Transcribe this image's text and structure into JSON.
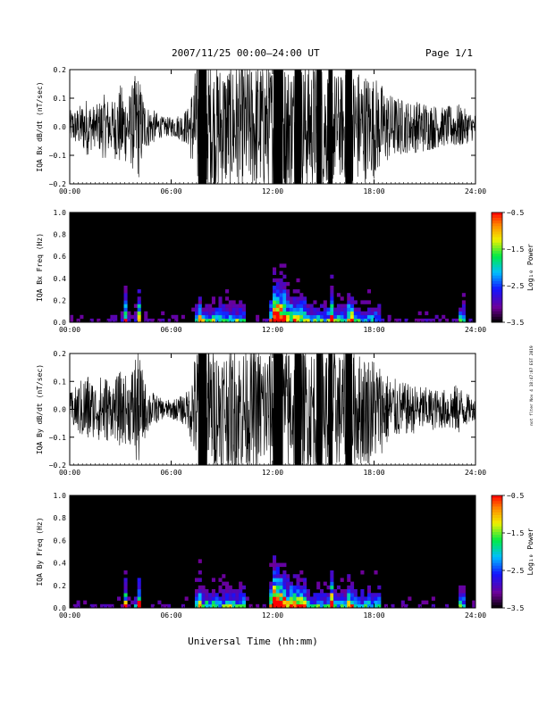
{
  "header": {
    "title": "2007/11/25  00:00–24:00 UT",
    "page": "Page 1/1"
  },
  "side_note": "not flter Nov 4 18:47:07 EST 2019",
  "xlabel": "Universal Time (hh:mm)",
  "x_ticks": [
    "00:00",
    "06:00",
    "12:00",
    "18:00",
    "24:00"
  ],
  "chart_data": [
    {
      "type": "line",
      "ylabel": "IQA Bx dB/dt (nT/sec)",
      "xlim": [
        0,
        24
      ],
      "ylim": [
        -0.2,
        0.2
      ],
      "y_ticks": [
        "0.2",
        "0.1",
        "0.0",
        "−0.1",
        "−0.2"
      ],
      "amplitude_envelope": {
        "hours": [
          0,
          0.5,
          1,
          1.5,
          2,
          2.5,
          3,
          3.5,
          4,
          4.5,
          5,
          5.5,
          6,
          6.5,
          7,
          7.5,
          8,
          9,
          10,
          11,
          12,
          12.5,
          13,
          14,
          15,
          16,
          17,
          18,
          19,
          20,
          21,
          22,
          23,
          23.5,
          24
        ],
        "values": [
          0.05,
          0.06,
          0.09,
          0.06,
          0.1,
          0.08,
          0.13,
          0.1,
          0.18,
          0.07,
          0.05,
          0.03,
          0.03,
          0.04,
          0.06,
          0.2,
          0.2,
          0.2,
          0.2,
          0.2,
          0.2,
          0.2,
          0.2,
          0.2,
          0.2,
          0.16,
          0.18,
          0.16,
          0.1,
          0.08,
          0.08,
          0.06,
          0.07,
          0.05,
          0.04
        ]
      }
    },
    {
      "type": "heatmap",
      "ylabel": "IQA Bx Freq (Hz)",
      "xlim": [
        0,
        24
      ],
      "ylim": [
        0,
        1.0
      ],
      "y_ticks": [
        "1.0",
        "0.8",
        "0.6",
        "0.4",
        "0.2",
        "0.0"
      ],
      "colorbar": {
        "label": "Log₁₀ Power",
        "range": [
          -3.5,
          -0.5
        ],
        "ticks": [
          "−0.5",
          "−1.5",
          "−2.5",
          "−3.5"
        ]
      }
    },
    {
      "type": "line",
      "ylabel": "IQA By dB/dt (nT/sec)",
      "xlim": [
        0,
        24
      ],
      "ylim": [
        -0.2,
        0.2
      ],
      "y_ticks": [
        "0.2",
        "0.1",
        "0.0",
        "−0.1",
        "−0.2"
      ],
      "amplitude_envelope": {
        "hours": [
          0,
          0.5,
          1,
          1.5,
          2,
          2.5,
          3,
          3.5,
          4,
          4.5,
          5,
          5.5,
          6,
          6.5,
          7,
          7.5,
          8,
          9,
          10,
          11,
          12,
          12.5,
          13,
          14,
          15,
          16,
          17,
          18,
          19,
          20,
          21,
          22,
          23,
          23.5,
          24
        ],
        "values": [
          0.05,
          0.08,
          0.12,
          0.08,
          0.12,
          0.08,
          0.12,
          0.1,
          0.2,
          0.08,
          0.05,
          0.03,
          0.03,
          0.04,
          0.06,
          0.2,
          0.2,
          0.2,
          0.2,
          0.2,
          0.2,
          0.2,
          0.2,
          0.2,
          0.2,
          0.18,
          0.18,
          0.17,
          0.1,
          0.08,
          0.07,
          0.06,
          0.08,
          0.05,
          0.03
        ]
      }
    },
    {
      "type": "heatmap",
      "ylabel": "IQA By Freq (Hz)",
      "xlim": [
        0,
        24
      ],
      "ylim": [
        0,
        1.0
      ],
      "y_ticks": [
        "1.0",
        "0.8",
        "0.6",
        "0.4",
        "0.2",
        "0.0"
      ],
      "colorbar": {
        "label": "Log₁₀ Power",
        "range": [
          -3.5,
          -0.5
        ],
        "ticks": [
          "−0.5",
          "−1.5",
          "−2.5",
          "−3.5"
        ]
      }
    }
  ]
}
